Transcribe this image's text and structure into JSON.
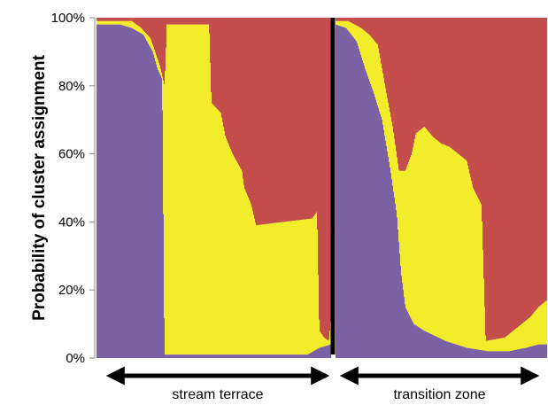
{
  "chart_data": {
    "type": "area",
    "ylabel": "Probability of cluster assignment",
    "yticks": [
      "0%",
      "20%",
      "40%",
      "60%",
      "80%",
      "100%"
    ],
    "ylim": [
      0,
      100
    ],
    "colors": {
      "cluster_purple": "#7b62a4",
      "cluster_yellow": "#f2ec2a",
      "cluster_red": "#c44e4c",
      "divider": "#000000"
    },
    "groups": [
      {
        "label": "stream terrace",
        "x_range": [
          0,
          100
        ],
        "purple_profile": [
          [
            0,
            98
          ],
          [
            10,
            98
          ],
          [
            15,
            97
          ],
          [
            20,
            95
          ],
          [
            24,
            90
          ],
          [
            26,
            85
          ],
          [
            28,
            82
          ],
          [
            29,
            1
          ],
          [
            35,
            1
          ],
          [
            55,
            1
          ],
          [
            75,
            1
          ],
          [
            90,
            1
          ],
          [
            95,
            3
          ],
          [
            100,
            4
          ]
        ],
        "yellow_profile": [
          [
            0,
            99
          ],
          [
            10,
            99
          ],
          [
            15,
            99
          ],
          [
            19,
            97
          ],
          [
            23,
            94
          ],
          [
            25,
            90
          ],
          [
            27,
            86
          ],
          [
            29,
            80
          ],
          [
            30,
            98
          ],
          [
            48,
            98
          ],
          [
            49,
            75
          ],
          [
            53,
            72
          ],
          [
            55,
            65
          ],
          [
            58,
            60
          ],
          [
            62,
            55
          ],
          [
            63,
            50
          ],
          [
            66,
            45
          ],
          [
            68,
            39
          ],
          [
            80,
            40
          ],
          [
            92,
            41
          ],
          [
            94,
            43
          ],
          [
            95,
            8
          ],
          [
            97,
            6
          ],
          [
            99,
            5
          ],
          [
            100,
            12
          ]
        ]
      },
      {
        "label": "transition zone",
        "x_range": [
          0,
          100
        ],
        "purple_profile": [
          [
            0,
            98
          ],
          [
            5,
            97
          ],
          [
            10,
            93
          ],
          [
            14,
            85
          ],
          [
            18,
            78
          ],
          [
            22,
            70
          ],
          [
            26,
            55
          ],
          [
            29,
            42
          ],
          [
            31,
            25
          ],
          [
            33,
            15
          ],
          [
            37,
            10
          ],
          [
            42,
            8
          ],
          [
            52,
            5
          ],
          [
            62,
            3
          ],
          [
            72,
            2
          ],
          [
            82,
            2
          ],
          [
            90,
            3
          ],
          [
            96,
            4
          ],
          [
            100,
            4
          ]
        ],
        "yellow_profile": [
          [
            0,
            99
          ],
          [
            6,
            99
          ],
          [
            12,
            97
          ],
          [
            16,
            95
          ],
          [
            20,
            92
          ],
          [
            22,
            85
          ],
          [
            24,
            78
          ],
          [
            27,
            68
          ],
          [
            30,
            55
          ],
          [
            33,
            55
          ],
          [
            36,
            60
          ],
          [
            38,
            66
          ],
          [
            42,
            68
          ],
          [
            46,
            65
          ],
          [
            50,
            63
          ],
          [
            54,
            62
          ],
          [
            58,
            60
          ],
          [
            62,
            58
          ],
          [
            65,
            50
          ],
          [
            69,
            45
          ],
          [
            71,
            5
          ],
          [
            80,
            6
          ],
          [
            84,
            8
          ],
          [
            88,
            10
          ],
          [
            92,
            12
          ],
          [
            96,
            15
          ],
          [
            100,
            17
          ]
        ]
      }
    ]
  }
}
